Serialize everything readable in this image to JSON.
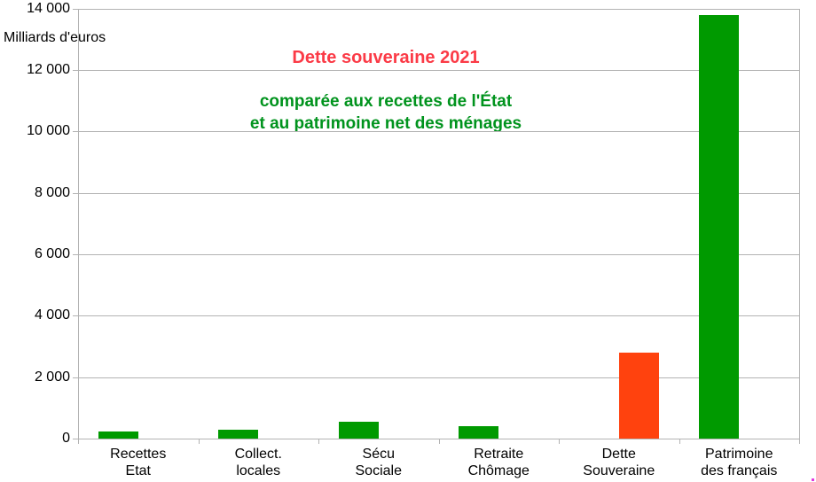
{
  "chart_data": {
    "type": "bar",
    "title": "Dette souveraine 2021",
    "subtitle_lines": [
      "comparée aux recettes de l'État",
      "et au patrimoine net des ménages"
    ],
    "ylabel": "Milliards d'euros",
    "xlabel": "",
    "ylim": [
      0,
      14000
    ],
    "ytick_interval": 2000,
    "grid": "horizontal",
    "legend": "none",
    "yticks": [
      {
        "value": 0,
        "label": "0"
      },
      {
        "value": 2000,
        "label": "2 000"
      },
      {
        "value": 4000,
        "label": "4 000"
      },
      {
        "value": 6000,
        "label": "6 000"
      },
      {
        "value": 8000,
        "label": "8 000"
      },
      {
        "value": 10000,
        "label": "10 000"
      },
      {
        "value": 12000,
        "label": "12 000"
      },
      {
        "value": 14000,
        "label": "14 000"
      }
    ],
    "categories": [
      {
        "id": "recettes-etat",
        "lines": [
          "Recettes",
          "Etat"
        ]
      },
      {
        "id": "collect-locales",
        "lines": [
          "Collect.",
          "locales"
        ]
      },
      {
        "id": "secu-sociale",
        "lines": [
          "Sécu",
          "Sociale"
        ]
      },
      {
        "id": "retraite-chomage",
        "lines": [
          "Retraite",
          "Chômage"
        ]
      },
      {
        "id": "dette-souveraine",
        "lines": [
          "Dette",
          "Souveraine"
        ]
      },
      {
        "id": "patrimoine-des-francais",
        "lines": [
          "Patrimoine",
          "des français"
        ]
      }
    ],
    "series": [
      {
        "name": "recettes-et-patrimoine",
        "color": "#009a00",
        "values": [
          230,
          280,
          550,
          395,
          0,
          13800
        ]
      },
      {
        "name": "dette",
        "color": "#ff420e",
        "values": [
          0,
          0,
          0,
          0,
          2800,
          0
        ]
      }
    ],
    "colors": {
      "grid": "#b3b3b3",
      "text": "#000000",
      "title": "#fb3a46",
      "subtitle": "#00931d",
      "bar_green": "#009a00",
      "bar_red": "#ff420e",
      "artifact_pixel": "#e23ae2"
    }
  }
}
